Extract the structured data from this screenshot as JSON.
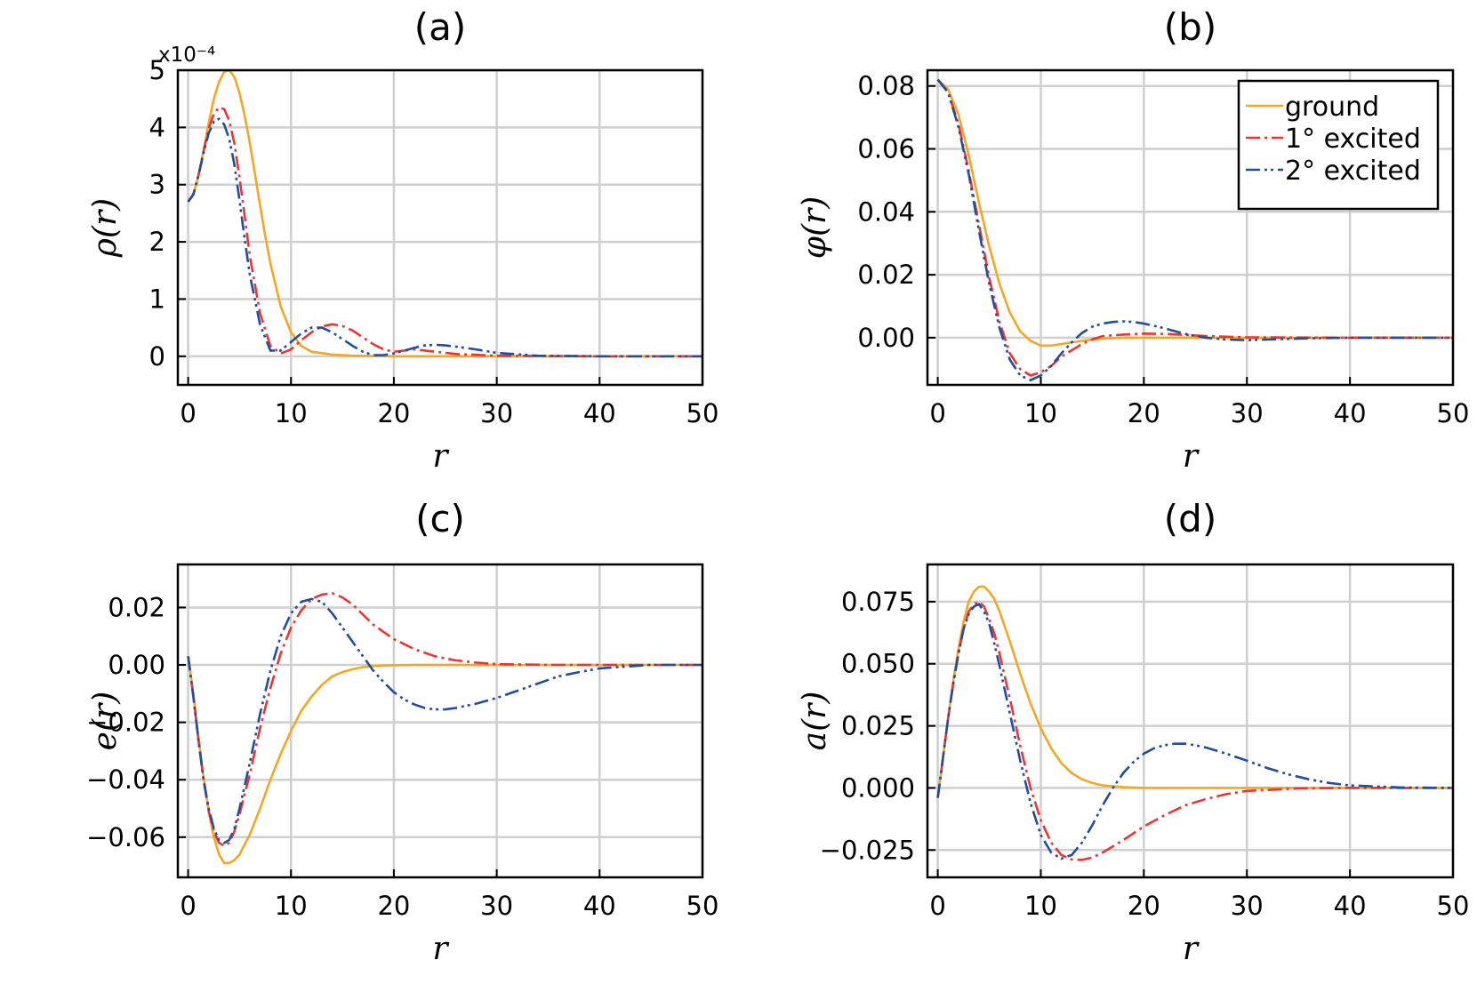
{
  "chart_data": [
    {
      "type": "line",
      "panel": "a",
      "title": "(a)",
      "xlabel": "r",
      "ylabel": "ρ(r)",
      "xlim": [
        -1,
        50
      ],
      "ylim": [
        -0.5,
        5
      ],
      "xticks": [
        "0",
        "10",
        "20",
        "30",
        "40",
        "50"
      ],
      "yticks": [
        "0",
        "1",
        "2",
        "3",
        "4",
        "5"
      ],
      "ytick_values": [
        0,
        1,
        2,
        3,
        4,
        5
      ],
      "y_multiplier": "x10⁻⁴",
      "series": [
        {
          "name": "ground",
          "color": "#f5a623",
          "style": "solid",
          "x": [
            0,
            0.5,
            1,
            1.5,
            2,
            2.5,
            3,
            3.5,
            4,
            4.5,
            5,
            5.5,
            6,
            6.5,
            7,
            7.5,
            8,
            9,
            10,
            11,
            12,
            14,
            16,
            18,
            20,
            25,
            30,
            40,
            50
          ],
          "y": [
            2.7,
            2.82,
            3.15,
            3.6,
            4.08,
            4.5,
            4.8,
            4.97,
            5.0,
            4.88,
            4.6,
            4.2,
            3.72,
            3.18,
            2.63,
            2.1,
            1.62,
            0.87,
            0.42,
            0.18,
            0.08,
            0.03,
            0.01,
            0.005,
            0,
            0,
            0,
            0,
            0
          ]
        },
        {
          "name": "1° excited",
          "color": "#ee3333",
          "style": "dashdot",
          "x": [
            0,
            0.5,
            1,
            1.5,
            2,
            2.5,
            3,
            3.5,
            4,
            4.5,
            5,
            5.5,
            6,
            7,
            8,
            9,
            10,
            11,
            12,
            13,
            14,
            15,
            16,
            17,
            18,
            19,
            20,
            21,
            22,
            24,
            26,
            30,
            40,
            50
          ],
          "y": [
            2.7,
            2.83,
            3.16,
            3.58,
            3.98,
            4.24,
            4.35,
            4.32,
            4.12,
            3.72,
            3.12,
            2.45,
            1.75,
            0.75,
            0.18,
            0.05,
            0.12,
            0.28,
            0.42,
            0.52,
            0.56,
            0.53,
            0.45,
            0.33,
            0.21,
            0.12,
            0.08,
            0.1,
            0.12,
            0.08,
            0.04,
            0.01,
            0,
            0
          ]
        },
        {
          "name": "2° excited",
          "color": "#1f4e9c",
          "style": "dashdotdot",
          "x": [
            0,
            0.5,
            1,
            1.5,
            2,
            2.5,
            3,
            3.5,
            4,
            4.5,
            5,
            5.5,
            6,
            7,
            8,
            9,
            10,
            11,
            12,
            13,
            14,
            15,
            16,
            17,
            18,
            19,
            20,
            21,
            22,
            23,
            24,
            25,
            26,
            28,
            30,
            34,
            40,
            50
          ],
          "y": [
            2.7,
            2.83,
            3.15,
            3.55,
            3.9,
            4.1,
            4.15,
            4.05,
            3.8,
            3.35,
            2.72,
            2.05,
            1.42,
            0.55,
            0.1,
            0.1,
            0.25,
            0.4,
            0.5,
            0.5,
            0.42,
            0.3,
            0.18,
            0.08,
            0.02,
            0.02,
            0.05,
            0.1,
            0.15,
            0.19,
            0.2,
            0.19,
            0.17,
            0.12,
            0.06,
            0.01,
            0,
            0
          ]
        }
      ]
    },
    {
      "type": "line",
      "panel": "b",
      "title": "(b)",
      "xlabel": "r",
      "ylabel": "φ(r)",
      "xlim": [
        -1,
        50
      ],
      "ylim": [
        -0.015,
        0.085
      ],
      "xticks": [
        "0",
        "10",
        "20",
        "30",
        "40",
        "50"
      ],
      "yticks": [
        "0.00",
        "0.02",
        "0.04",
        "0.06",
        "0.08"
      ],
      "ytick_values": [
        0,
        0.02,
        0.04,
        0.06,
        0.08
      ],
      "legend": {
        "position": "top-right",
        "entries": [
          "ground",
          "1° excited",
          "2° excited"
        ]
      },
      "series": [
        {
          "name": "ground",
          "color": "#f5a623",
          "style": "solid",
          "x": [
            0,
            1,
            2,
            3,
            4,
            5,
            6,
            7,
            8,
            9,
            10,
            11,
            12,
            14,
            16,
            18,
            20,
            25,
            30,
            40,
            50
          ],
          "y": [
            0.082,
            0.079,
            0.071,
            0.058,
            0.043,
            0.029,
            0.017,
            0.008,
            0.002,
            -0.001,
            -0.0025,
            -0.0025,
            -0.002,
            -0.001,
            -0.0003,
            0,
            0,
            0,
            0,
            0,
            0
          ]
        },
        {
          "name": "1° excited",
          "color": "#ee3333",
          "style": "dashdot",
          "x": [
            0,
            1,
            2,
            3,
            4,
            5,
            6,
            7,
            8,
            9,
            10,
            11,
            12,
            13,
            14,
            15,
            16,
            18,
            20,
            22,
            24,
            26,
            30,
            40,
            50
          ],
          "y": [
            0.082,
            0.078,
            0.068,
            0.053,
            0.036,
            0.019,
            0.005,
            -0.005,
            -0.01,
            -0.012,
            -0.011,
            -0.009,
            -0.006,
            -0.004,
            -0.002,
            -0.0005,
            0.0005,
            0.001,
            0.0013,
            0.0012,
            0.0009,
            0.0005,
            0.0001,
            0,
            0
          ]
        },
        {
          "name": "2° excited",
          "color": "#1f4e9c",
          "style": "dashdotdot",
          "x": [
            0,
            1,
            2,
            3,
            4,
            5,
            6,
            7,
            8,
            9,
            10,
            11,
            12,
            13,
            14,
            15,
            16,
            17,
            18,
            19,
            20,
            22,
            24,
            26,
            28,
            30,
            32,
            36,
            40,
            50
          ],
          "y": [
            0.082,
            0.078,
            0.067,
            0.052,
            0.034,
            0.017,
            0.003,
            -0.007,
            -0.012,
            -0.0135,
            -0.012,
            -0.009,
            -0.005,
            -0.0015,
            0.0015,
            0.0035,
            0.0045,
            0.005,
            0.0052,
            0.005,
            0.0045,
            0.003,
            0.0012,
            0,
            -0.0006,
            -0.0008,
            -0.0006,
            -0.0002,
            0,
            0
          ]
        }
      ]
    },
    {
      "type": "line",
      "panel": "c",
      "title": "(c)",
      "xlabel": "r",
      "ylabel": "e(r)",
      "xlim": [
        -1,
        50
      ],
      "ylim": [
        -0.074,
        0.035
      ],
      "xticks": [
        "0",
        "10",
        "20",
        "30",
        "40",
        "50"
      ],
      "yticks": [
        "−0.06",
        "−0.04",
        "−0.02",
        "0.00",
        "0.02"
      ],
      "ytick_values": [
        -0.06,
        -0.04,
        -0.02,
        0,
        0.02
      ],
      "series": [
        {
          "name": "ground",
          "color": "#f5a623",
          "style": "solid",
          "x": [
            0,
            0.5,
            1,
            1.5,
            2,
            2.5,
            3,
            3.5,
            4,
            4.5,
            5,
            6,
            7,
            8,
            9,
            10,
            11,
            12,
            13,
            14,
            15,
            16,
            17,
            18,
            20,
            22,
            25,
            30,
            40,
            50
          ],
          "y": [
            0.003,
            -0.01,
            -0.025,
            -0.039,
            -0.051,
            -0.06,
            -0.066,
            -0.069,
            -0.069,
            -0.068,
            -0.066,
            -0.059,
            -0.05,
            -0.04,
            -0.031,
            -0.023,
            -0.016,
            -0.011,
            -0.007,
            -0.004,
            -0.0025,
            -0.0015,
            -0.0008,
            -0.0004,
            -0.0001,
            0,
            0,
            0,
            0,
            0
          ]
        },
        {
          "name": "1° excited",
          "color": "#ee3333",
          "style": "dashdot",
          "x": [
            0,
            0.5,
            1,
            1.5,
            2,
            2.5,
            3,
            3.5,
            4,
            4.5,
            5,
            6,
            7,
            8,
            9,
            10,
            11,
            12,
            13,
            14,
            15,
            16,
            17,
            18,
            20,
            22,
            24,
            26,
            28,
            30,
            35,
            40,
            50
          ],
          "y": [
            0.003,
            -0.011,
            -0.026,
            -0.04,
            -0.051,
            -0.058,
            -0.062,
            -0.063,
            -0.062,
            -0.058,
            -0.052,
            -0.038,
            -0.022,
            -0.008,
            0.004,
            0.013,
            0.019,
            0.023,
            0.0245,
            0.025,
            0.0235,
            0.021,
            0.0175,
            0.014,
            0.009,
            0.0055,
            0.003,
            0.0016,
            0.0008,
            0.0003,
            0,
            0,
            0
          ]
        },
        {
          "name": "2° excited",
          "color": "#1f4e9c",
          "style": "dashdotdot",
          "x": [
            0,
            0.5,
            1,
            1.5,
            2,
            2.5,
            3,
            3.5,
            4,
            4.5,
            5,
            6,
            7,
            8,
            9,
            10,
            11,
            12,
            13,
            14,
            15,
            16,
            17,
            18,
            19,
            20,
            21,
            22,
            23,
            24,
            25,
            26,
            28,
            30,
            32,
            34,
            36,
            38,
            40,
            45,
            50
          ],
          "y": [
            0.003,
            -0.011,
            -0.026,
            -0.04,
            -0.05,
            -0.057,
            -0.061,
            -0.062,
            -0.061,
            -0.057,
            -0.05,
            -0.034,
            -0.017,
            -0.002,
            0.01,
            0.018,
            0.022,
            0.023,
            0.022,
            0.018,
            0.013,
            0.008,
            0.003,
            -0.002,
            -0.006,
            -0.0095,
            -0.012,
            -0.0138,
            -0.015,
            -0.0155,
            -0.0155,
            -0.015,
            -0.0135,
            -0.0115,
            -0.009,
            -0.0065,
            -0.004,
            -0.0025,
            -0.0012,
            0,
            0
          ]
        }
      ]
    },
    {
      "type": "line",
      "panel": "d",
      "title": "(d)",
      "xlabel": "r",
      "ylabel": "a(r)",
      "xlim": [
        -1,
        50
      ],
      "ylim": [
        -0.036,
        0.09
      ],
      "xticks": [
        "0",
        "10",
        "20",
        "30",
        "40",
        "50"
      ],
      "yticks": [
        "−0.025",
        "0.000",
        "0.025",
        "0.050",
        "0.075"
      ],
      "ytick_values": [
        -0.025,
        0,
        0.025,
        0.05,
        0.075
      ],
      "series": [
        {
          "name": "ground",
          "color": "#f5a623",
          "style": "solid",
          "x": [
            0,
            0.5,
            1,
            1.5,
            2,
            2.5,
            3,
            3.5,
            4,
            4.5,
            5,
            5.5,
            6,
            7,
            8,
            9,
            10,
            11,
            12,
            13,
            14,
            15,
            16,
            18,
            20,
            25,
            30,
            40,
            50
          ],
          "y": [
            -0.004,
            0.012,
            0.028,
            0.043,
            0.056,
            0.067,
            0.075,
            0.079,
            0.081,
            0.081,
            0.079,
            0.076,
            0.071,
            0.059,
            0.046,
            0.034,
            0.024,
            0.016,
            0.01,
            0.006,
            0.0035,
            0.002,
            0.001,
            0.0003,
            0,
            0,
            0,
            0,
            0
          ]
        },
        {
          "name": "1° excited",
          "color": "#ee3333",
          "style": "dashdot",
          "x": [
            0,
            0.5,
            1,
            1.5,
            2,
            2.5,
            3,
            3.5,
            4,
            4.5,
            5,
            5.5,
            6,
            7,
            8,
            9,
            10,
            11,
            12,
            13,
            14,
            15,
            16,
            17,
            18,
            20,
            22,
            24,
            26,
            28,
            30,
            35,
            40,
            50
          ],
          "y": [
            -0.004,
            0.012,
            0.028,
            0.042,
            0.054,
            0.064,
            0.071,
            0.074,
            0.075,
            0.073,
            0.068,
            0.062,
            0.054,
            0.036,
            0.017,
            0.0,
            -0.013,
            -0.022,
            -0.027,
            -0.0288,
            -0.029,
            -0.028,
            -0.026,
            -0.0235,
            -0.021,
            -0.0155,
            -0.011,
            -0.007,
            -0.0045,
            -0.0025,
            -0.0012,
            -0.0002,
            0,
            0
          ]
        },
        {
          "name": "2° excited",
          "color": "#1f4e9c",
          "style": "dashdotdot",
          "x": [
            0,
            0.5,
            1,
            1.5,
            2,
            2.5,
            3,
            3.5,
            4,
            4.5,
            5,
            5.5,
            6,
            7,
            8,
            9,
            10,
            11,
            12,
            13,
            14,
            15,
            16,
            17,
            18,
            19,
            20,
            21,
            22,
            23,
            24,
            25,
            26,
            28,
            30,
            32,
            34,
            36,
            38,
            40,
            45,
            50
          ],
          "y": [
            -0.004,
            0.012,
            0.028,
            0.042,
            0.054,
            0.064,
            0.07,
            0.073,
            0.074,
            0.071,
            0.066,
            0.058,
            0.049,
            0.03,
            0.011,
            -0.006,
            -0.019,
            -0.026,
            -0.0285,
            -0.027,
            -0.022,
            -0.015,
            -0.007,
            0.0,
            0.006,
            0.0105,
            0.0138,
            0.016,
            0.0172,
            0.0178,
            0.0178,
            0.0172,
            0.0163,
            0.0138,
            0.011,
            0.008,
            0.0055,
            0.0035,
            0.002,
            0.001,
            0.0002,
            0
          ]
        }
      ]
    }
  ]
}
